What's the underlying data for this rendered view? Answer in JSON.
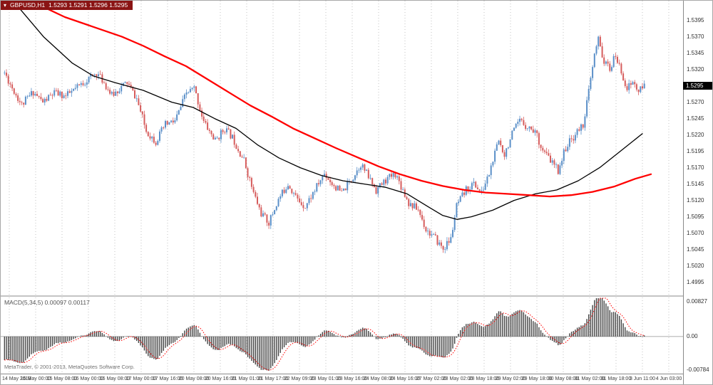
{
  "header": {
    "symbol_label": "GBPUSD,H1",
    "quote_values": "1.5293 1.5291 1.5296 1.5295"
  },
  "indicator_label": "MACD(5,34,5) 0.00097 0.00117",
  "copyright": "MetaTrader, © 2001-2013, MetaQuotes Software Corp.",
  "price_axis": {
    "ticks": [
      "1.5395",
      "1.5370",
      "1.5345",
      "1.5320",
      "1.5295",
      "1.5270",
      "1.5245",
      "1.5220",
      "1.5195",
      "1.5170",
      "1.5145",
      "1.5120",
      "1.5095",
      "1.5070",
      "1.5045",
      "1.5020",
      "1.4995"
    ],
    "current": "1.5295"
  },
  "macd_axis": {
    "top": "0.00827",
    "zero": "0.00",
    "bottom": "-0.00784"
  },
  "time_axis": [
    "14 May 2013",
    "15 May 00:00",
    "15 May 08:00",
    "16 May 00:00",
    "16 May 08:00",
    "17 May 00:00",
    "17 May 16:00",
    "20 May 08:00",
    "20 May 16:00",
    "21 May 01:00",
    "21 May 17:00",
    "22 May 09:00",
    "23 May 01:00",
    "23 May 16:00",
    "24 May 08:00",
    "24 May 16:00",
    "27 May 02:00",
    "28 May 02:00",
    "28 May 18:00",
    "29 May 02:00",
    "29 May 18:00",
    "30 May 08:00",
    "31 May 02:00",
    "31 May 18:00",
    "3 Jun 11:00",
    "4 Jun 03:00"
  ],
  "colors": {
    "bull": "#5a8fc8",
    "bear": "#d65c5c",
    "ma_fast": "#000000",
    "ma_slow": "#ff0000",
    "macd_bar": "#444444",
    "macd_signal": "#ff0000",
    "header_bg": "#8a1414",
    "badge_bg": "#000000",
    "badge_text": "#ffffff"
  },
  "chart_data": [
    {
      "type": "candlestick",
      "title": "GBPUSD,H1",
      "ylim": [
        1.4975,
        1.5425
      ],
      "bars": 335,
      "current_price": 1.5295,
      "price_path": [
        [
          0,
          1.5315
        ],
        [
          4,
          1.5292
        ],
        [
          9,
          1.5266
        ],
        [
          15,
          1.5286
        ],
        [
          20,
          1.527
        ],
        [
          26,
          1.5284
        ],
        [
          32,
          1.5279
        ],
        [
          37,
          1.529
        ],
        [
          43,
          1.5304
        ],
        [
          48,
          1.5315
        ],
        [
          52,
          1.53
        ],
        [
          56,
          1.528
        ],
        [
          60,
          1.5291
        ],
        [
          64,
          1.53
        ],
        [
          69,
          1.5275
        ],
        [
          74,
          1.5226
        ],
        [
          79,
          1.521
        ],
        [
          84,
          1.5236
        ],
        [
          89,
          1.5241
        ],
        [
          95,
          1.5284
        ],
        [
          99,
          1.5291
        ],
        [
          104,
          1.524
        ],
        [
          110,
          1.5211
        ],
        [
          115,
          1.523
        ],
        [
          119,
          1.5216
        ],
        [
          125,
          1.5181
        ],
        [
          130,
          1.5131
        ],
        [
          134,
          1.51
        ],
        [
          138,
          1.5086
        ],
        [
          143,
          1.5121
        ],
        [
          148,
          1.5146
        ],
        [
          153,
          1.5121
        ],
        [
          157,
          1.5111
        ],
        [
          162,
          1.5136
        ],
        [
          167,
          1.5161
        ],
        [
          171,
          1.5146
        ],
        [
          176,
          1.5131
        ],
        [
          182,
          1.5156
        ],
        [
          186,
          1.5176
        ],
        [
          191,
          1.5151
        ],
        [
          194,
          1.5136
        ],
        [
          199,
          1.5151
        ],
        [
          204,
          1.5161
        ],
        [
          208,
          1.5136
        ],
        [
          211,
          1.5116
        ],
        [
          216,
          1.5106
        ],
        [
          220,
          1.5076
        ],
        [
          225,
          1.5061
        ],
        [
          229,
          1.5046
        ],
        [
          233,
          1.5061
        ],
        [
          236,
          1.5111
        ],
        [
          241,
          1.5136
        ],
        [
          245,
          1.5146
        ],
        [
          249,
          1.5131
        ],
        [
          253,
          1.5161
        ],
        [
          258,
          1.5211
        ],
        [
          261,
          1.5191
        ],
        [
          265,
          1.5221
        ],
        [
          269,
          1.5241
        ],
        [
          274,
          1.5231
        ],
        [
          277,
          1.5226
        ],
        [
          281,
          1.5196
        ],
        [
          285,
          1.5181
        ],
        [
          289,
          1.5166
        ],
        [
          293,
          1.5201
        ],
        [
          298,
          1.5221
        ],
        [
          302,
          1.5236
        ],
        [
          305,
          1.5286
        ],
        [
          308,
          1.5341
        ],
        [
          310,
          1.5366
        ],
        [
          313,
          1.5331
        ],
        [
          316,
          1.5321
        ],
        [
          319,
          1.5341
        ],
        [
          322,
          1.5316
        ],
        [
          325,
          1.5291
        ],
        [
          328,
          1.5301
        ],
        [
          331,
          1.5286
        ],
        [
          334,
          1.5295
        ]
      ],
      "noise": {
        "seed": 11,
        "close": 0.0012,
        "wick": 0.0006
      },
      "overlays": [
        {
          "name": "ma-fast-black",
          "color_key": "ma_fast",
          "width": 1.3,
          "points": [
            [
              25,
              1.5415
            ],
            [
              60,
              1.537
            ],
            [
              100,
              1.533
            ],
            [
              130,
              1.531
            ],
            [
              160,
              1.53
            ],
            [
              200,
              1.5288
            ],
            [
              240,
              1.527
            ],
            [
              270,
              1.5262
            ],
            [
              300,
              1.5245
            ],
            [
              330,
              1.523
            ],
            [
              360,
              1.5205
            ],
            [
              390,
              1.5185
            ],
            [
              420,
              1.517
            ],
            [
              450,
              1.5158
            ],
            [
              480,
              1.515
            ],
            [
              510,
              1.5145
            ],
            [
              540,
              1.514
            ],
            [
              570,
              1.513
            ],
            [
              600,
              1.511
            ],
            [
              620,
              1.5097
            ],
            [
              640,
              1.5091
            ],
            [
              660,
              1.5095
            ],
            [
              690,
              1.5105
            ],
            [
              720,
              1.512
            ],
            [
              750,
              1.513
            ],
            [
              780,
              1.5136
            ],
            [
              810,
              1.515
            ],
            [
              840,
              1.517
            ],
            [
              870,
              1.5196
            ],
            [
              900,
              1.5222
            ]
          ]
        },
        {
          "name": "ma-slow-red",
          "color_key": "ma_slow",
          "width": 2.3,
          "points": [
            [
              55,
              1.5418
            ],
            [
              90,
              1.54
            ],
            [
              130,
              1.5385
            ],
            [
              170,
              1.537
            ],
            [
              200,
              1.5356
            ],
            [
              230,
              1.534
            ],
            [
              260,
              1.5325
            ],
            [
              290,
              1.5305
            ],
            [
              320,
              1.5285
            ],
            [
              350,
              1.5265
            ],
            [
              380,
              1.5248
            ],
            [
              410,
              1.523
            ],
            [
              440,
              1.5215
            ],
            [
              470,
              1.52
            ],
            [
              500,
              1.5186
            ],
            [
              530,
              1.5172
            ],
            [
              560,
              1.516
            ],
            [
              590,
              1.515
            ],
            [
              620,
              1.5142
            ],
            [
              650,
              1.5136
            ],
            [
              680,
              1.5132
            ],
            [
              710,
              1.513
            ],
            [
              740,
              1.5128
            ],
            [
              770,
              1.5126
            ],
            [
              800,
              1.5128
            ],
            [
              830,
              1.5133
            ],
            [
              860,
              1.5141
            ],
            [
              890,
              1.5153
            ],
            [
              912,
              1.516
            ]
          ]
        }
      ]
    },
    {
      "type": "macd",
      "params": [
        5,
        34,
        5
      ],
      "values": [
        0.00097,
        0.00117
      ],
      "ylim": [
        -0.00784,
        0.00827
      ],
      "ema_long_seed": 1.5368,
      "source": "histogram derived from candlestick closes (EMA5 - EMA34, signal SMA5)"
    }
  ]
}
